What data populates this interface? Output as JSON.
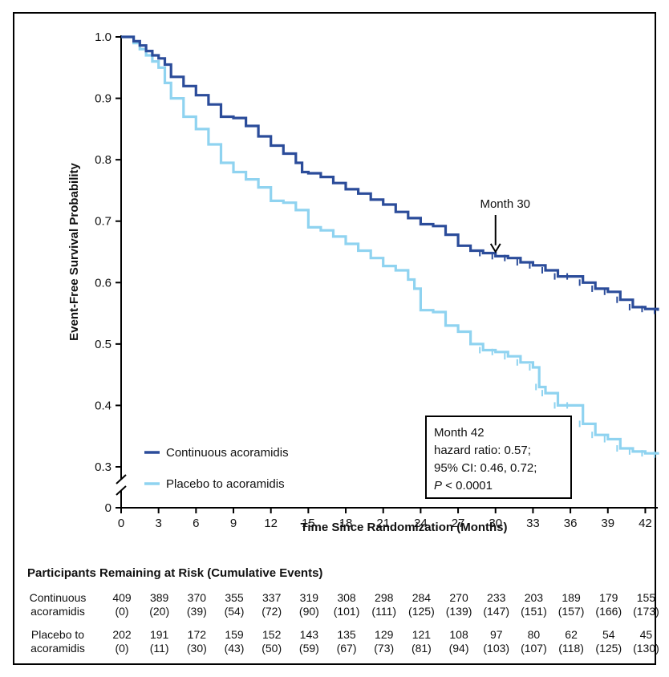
{
  "chart_data": {
    "type": "line",
    "xlabel": "Time Since Randomization (Months)",
    "ylabel": "Event-Free Survival Probability",
    "x_ticks": [
      0,
      3,
      6,
      9,
      12,
      15,
      18,
      21,
      24,
      27,
      30,
      33,
      36,
      39,
      42
    ],
    "y_ticks": [
      "1.0",
      "0.9",
      "0.8",
      "0.7",
      "0.6",
      "0.5",
      "0.4",
      "0.3"
    ],
    "y_zero_label": "0",
    "xlim": [
      0,
      43
    ],
    "ylim": [
      0.3,
      1.0
    ],
    "axis_break": true,
    "legend_position": "bottom-left",
    "series": [
      {
        "name": "Continuous acoramidis",
        "color": "#2b4c9a",
        "x": [
          0,
          0.5,
          1,
          1.5,
          2,
          2.5,
          3,
          3.5,
          4,
          5,
          6,
          7,
          8,
          9,
          10,
          11,
          12,
          13,
          14,
          14.5,
          15,
          16,
          17,
          18,
          19,
          20,
          21,
          22,
          23,
          24,
          25,
          26,
          27,
          28,
          29,
          30,
          31,
          32,
          33,
          34,
          35,
          36,
          37,
          38,
          39,
          40,
          41,
          42,
          43
        ],
        "y": [
          1.0,
          1.0,
          0.993,
          0.986,
          0.977,
          0.97,
          0.965,
          0.955,
          0.935,
          0.92,
          0.905,
          0.89,
          0.87,
          0.868,
          0.855,
          0.838,
          0.823,
          0.81,
          0.795,
          0.78,
          0.778,
          0.772,
          0.762,
          0.752,
          0.745,
          0.735,
          0.727,
          0.715,
          0.705,
          0.695,
          0.692,
          0.678,
          0.66,
          0.652,
          0.648,
          0.643,
          0.64,
          0.633,
          0.628,
          0.62,
          0.61,
          0.61,
          0.6,
          0.59,
          0.585,
          0.572,
          0.56,
          0.557,
          0.554
        ]
      },
      {
        "name": "Placebo to acoramidis",
        "color": "#8fd3f0",
        "x": [
          0,
          0.5,
          1,
          1.5,
          2,
          2.5,
          3,
          3.5,
          4,
          5,
          6,
          7,
          8,
          9,
          10,
          11,
          12,
          13,
          14,
          15,
          16,
          17,
          18,
          19,
          20,
          21,
          22,
          23,
          23.5,
          24,
          25,
          26,
          27,
          28,
          29,
          30,
          31,
          32,
          33,
          33.5,
          34,
          35,
          36,
          37,
          38,
          39,
          40,
          41,
          42,
          43
        ],
        "y": [
          1.0,
          1.0,
          0.99,
          0.98,
          0.97,
          0.96,
          0.95,
          0.925,
          0.9,
          0.87,
          0.85,
          0.825,
          0.795,
          0.78,
          0.768,
          0.755,
          0.733,
          0.73,
          0.718,
          0.69,
          0.685,
          0.675,
          0.663,
          0.652,
          0.64,
          0.627,
          0.62,
          0.605,
          0.59,
          0.555,
          0.552,
          0.53,
          0.52,
          0.5,
          0.49,
          0.487,
          0.48,
          0.47,
          0.462,
          0.43,
          0.42,
          0.4,
          0.4,
          0.37,
          0.352,
          0.345,
          0.33,
          0.325,
          0.322,
          0.32
        ]
      }
    ],
    "annotations": {
      "arrow_label": "Month 30",
      "arrow_x": 30,
      "arrow_target_y": 0.645,
      "box_lines": [
        "Month 42",
        "hazard ratio: 0.57;",
        "95% CI: 0.46, 0.72;",
        "P < 0.0001"
      ],
      "box_italic_prefix": "P"
    }
  },
  "risk_table": {
    "title": "Participants Remaining at Risk (Cumulative Events)",
    "rows": [
      {
        "label_line1": "Continuous",
        "label_line2": "acoramidis",
        "at_risk": [
          "409",
          "389",
          "370",
          "355",
          "337",
          "319",
          "308",
          "298",
          "284",
          "270",
          "233",
          "203",
          "189",
          "179",
          "155"
        ],
        "events": [
          "(0)",
          "(20)",
          "(39)",
          "(54)",
          "(72)",
          "(90)",
          "(101)",
          "(111)",
          "(125)",
          "(139)",
          "(147)",
          "(151)",
          "(157)",
          "(166)",
          "(173)"
        ]
      },
      {
        "label_line1": "Placebo to",
        "label_line2": "acoramidis",
        "at_risk": [
          "202",
          "191",
          "172",
          "159",
          "152",
          "143",
          "135",
          "129",
          "121",
          "108",
          "97",
          "80",
          "62",
          "54",
          "45"
        ],
        "events": [
          "(0)",
          "(11)",
          "(30)",
          "(43)",
          "(50)",
          "(59)",
          "(67)",
          "(73)",
          "(81)",
          "(94)",
          "(103)",
          "(107)",
          "(118)",
          "(125)",
          "(130)"
        ]
      }
    ]
  }
}
